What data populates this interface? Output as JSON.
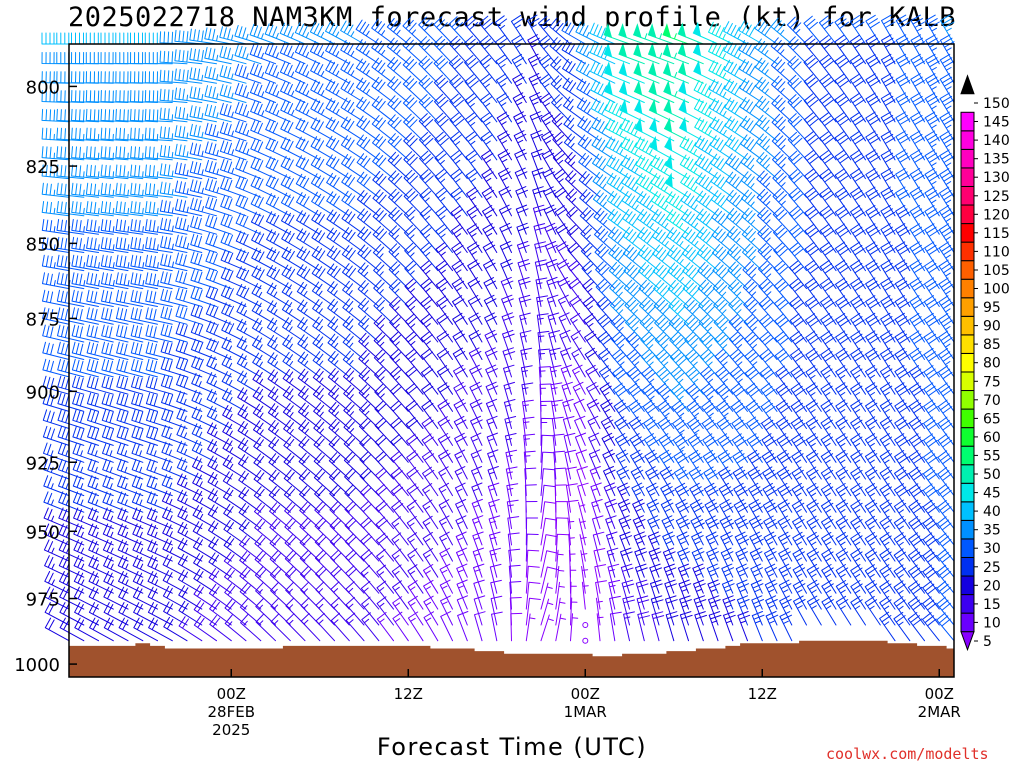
{
  "chart_data": {
    "type": "wind-barb time-height profile",
    "title": "2025022718 NAM3KM forecast wind profile (kt) for KALB",
    "xlabel": "Forecast Time (UTC)",
    "credit": "coolwx.com/modelts",
    "y_axis": {
      "label": "",
      "ticks": [
        "800",
        "825",
        "850",
        "875",
        "900",
        "925",
        "950",
        "975",
        "1000"
      ],
      "range_hPa": [
        1005,
        787
      ],
      "direction": "pressure decreasing upward"
    },
    "x_axis": {
      "range_hours": [
        -11,
        49
      ],
      "ticks": [
        {
          "hour": 0,
          "lines": [
            "00Z",
            "28FEB",
            "2025"
          ]
        },
        {
          "hour": 12,
          "lines": [
            "12Z"
          ]
        },
        {
          "hour": 24,
          "lines": [
            "00Z",
            "1MAR"
          ]
        },
        {
          "hour": 36,
          "lines": [
            "12Z"
          ]
        },
        {
          "hour": 48,
          "lines": [
            "00Z",
            "2MAR"
          ]
        }
      ]
    },
    "colorbar": {
      "unit": "kt",
      "levels": [
        5,
        10,
        15,
        20,
        25,
        30,
        35,
        40,
        45,
        50,
        55,
        60,
        65,
        70,
        75,
        80,
        85,
        90,
        95,
        100,
        105,
        110,
        115,
        120,
        125,
        130,
        135,
        140,
        145,
        150
      ],
      "colors": [
        "#8800ff",
        "#6a00ff",
        "#3c00f0",
        "#1400e0",
        "#0030f0",
        "#0058ff",
        "#0090ff",
        "#00c0ff",
        "#00e8e8",
        "#00f0b0",
        "#00ff70",
        "#10ff30",
        "#40ff00",
        "#90ff00",
        "#d8ff00",
        "#ffff00",
        "#ffe000",
        "#ffc000",
        "#ffa000",
        "#ff8000",
        "#ff6000",
        "#ff3000",
        "#ff0000",
        "#ff0040",
        "#ff0070",
        "#ff0098",
        "#ff00c0",
        "#ff00e0",
        "#ff00ff",
        "#ff40ff"
      ]
    },
    "surface": {
      "color": "#a0522d",
      "hours": [
        -11,
        -10,
        -9,
        -8,
        -7,
        -6,
        -5,
        -4,
        -3,
        -2,
        -1,
        0,
        1,
        2,
        3,
        4,
        5,
        6,
        7,
        8,
        9,
        10,
        11,
        12,
        13,
        14,
        15,
        16,
        17,
        18,
        19,
        20,
        21,
        22,
        23,
        24,
        25,
        26,
        27,
        28,
        29,
        30,
        31,
        32,
        33,
        34,
        35,
        36,
        37,
        38,
        39,
        40,
        41,
        42,
        43,
        44,
        45,
        46,
        47,
        48,
        49
      ],
      "surface_pressure_hPa": [
        993,
        993,
        993,
        993,
        993,
        992,
        993,
        994,
        994,
        994,
        994,
        994,
        994,
        994,
        994,
        993,
        993,
        993,
        993,
        993,
        993,
        993,
        993,
        993,
        993,
        994,
        994,
        994,
        995,
        995,
        996,
        996,
        996,
        996,
        996,
        996,
        997,
        997,
        996,
        996,
        996,
        995,
        995,
        994,
        994,
        993,
        992,
        992,
        992,
        992,
        991,
        991,
        991,
        991,
        991,
        991,
        992,
        992,
        993,
        993,
        994
      ]
    },
    "barb_grid": {
      "hours": [
        -11,
        -10,
        -9,
        -8,
        -7,
        -6,
        -5,
        -4,
        -3,
        -2,
        -1,
        0,
        1,
        2,
        3,
        4,
        5,
        6,
        7,
        8,
        9,
        10,
        11,
        12,
        13,
        14,
        15,
        16,
        17,
        18,
        19,
        20,
        21,
        22,
        23,
        24,
        25,
        26,
        27,
        28,
        29,
        30,
        31,
        32,
        33,
        34,
        35,
        36,
        37,
        38,
        39,
        40,
        41,
        42,
        43,
        44,
        45,
        46,
        47,
        48,
        49
      ],
      "levels_hPa": [
        787,
        793,
        799,
        805,
        811,
        817,
        823,
        829,
        835,
        841,
        847,
        853,
        859,
        865,
        871,
        877,
        883,
        889,
        895,
        901,
        907,
        913,
        919,
        925,
        931,
        937,
        943,
        949,
        955,
        961,
        967,
        973,
        979,
        985,
        991,
        997
      ],
      "keyframes": [
        {
          "hour": -11,
          "low": {
            "dir": 300,
            "spd": 20
          },
          "high": {
            "dir": 270,
            "spd": 40
          }
        },
        {
          "hour": -4,
          "low": {
            "dir": 300,
            "spd": 20
          },
          "high": {
            "dir": 270,
            "spd": 40
          }
        },
        {
          "hour": 3,
          "low": {
            "dir": 315,
            "spd": 15
          },
          "high": {
            "dir": 290,
            "spd": 35
          }
        },
        {
          "hour": 9,
          "low": {
            "dir": 320,
            "spd": 15
          },
          "high": {
            "dir": 300,
            "spd": 35
          }
        },
        {
          "hour": 14,
          "low": {
            "dir": 330,
            "spd": 12
          },
          "high": {
            "dir": 315,
            "spd": 32
          }
        },
        {
          "hour": 18,
          "low": {
            "dir": 350,
            "spd": 10
          },
          "high": {
            "dir": 320,
            "spd": 28
          }
        },
        {
          "hour": 21,
          "low": {
            "dir": 20,
            "spd": 5
          },
          "high": {
            "dir": 330,
            "spd": 25
          }
        },
        {
          "hour": 24,
          "low": {
            "dir": 0,
            "spd": 0
          },
          "high": {
            "dir": 300,
            "spd": 30
          }
        },
        {
          "hour": 27,
          "low": {
            "dir": 350,
            "spd": 15
          },
          "high": {
            "dir": 290,
            "spd": 50
          }
        },
        {
          "hour": 31,
          "low": {
            "dir": 345,
            "spd": 20
          },
          "high": {
            "dir": 290,
            "spd": 55
          }
        },
        {
          "hour": 36,
          "low": {
            "dir": 340,
            "spd": 25
          },
          "high": {
            "dir": 300,
            "spd": 40
          }
        },
        {
          "hour": 40,
          "low": {
            "dir": 330,
            "spd": 25
          },
          "high": {
            "dir": 320,
            "spd": 30
          }
        },
        {
          "hour": 45,
          "low": {
            "dir": 325,
            "spd": 25
          },
          "high": {
            "dir": 330,
            "spd": 30
          }
        },
        {
          "hour": 49,
          "low": {
            "dir": 320,
            "spd": 30
          },
          "high": {
            "dir": 330,
            "spd": 35
          }
        }
      ]
    }
  }
}
